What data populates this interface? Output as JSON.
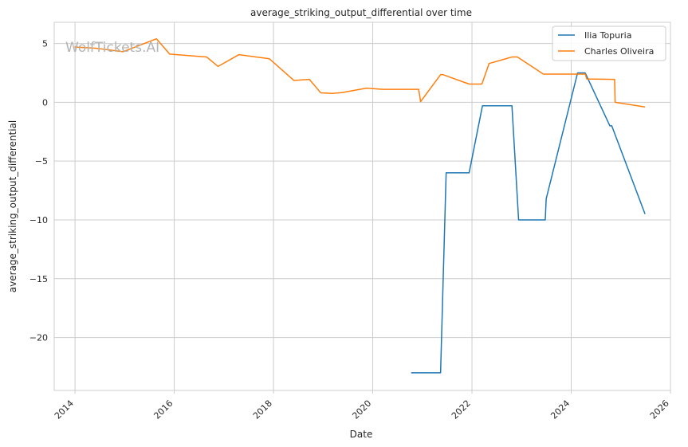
{
  "chart_data": {
    "type": "line",
    "title": "average_striking_output_differential over time",
    "xlabel": "Date",
    "ylabel": "average_striking_output_differential",
    "watermark": "WolfTickets.AI",
    "grid": true,
    "legend_position": "top-right",
    "xlim": [
      "2013-08-01",
      "2026-01-01"
    ],
    "ylim": [
      -24.5,
      6.8
    ],
    "x_ticks": [
      "2014",
      "2016",
      "2018",
      "2020",
      "2022",
      "2024",
      "2026"
    ],
    "y_ticks": [
      5,
      0,
      -5,
      -10,
      -15,
      -20
    ],
    "y_tick_labels": [
      "5",
      "0",
      "−5",
      "−10",
      "−15",
      "−20"
    ],
    "series": [
      {
        "name": "Ilia Topuria",
        "color": "#1f77b4",
        "points": [
          [
            "2020-10-10",
            -23.0
          ],
          [
            "2021-05-15",
            -23.0
          ],
          [
            "2021-06-25",
            -6.0
          ],
          [
            "2021-12-11",
            -6.0
          ],
          [
            "2022-03-19",
            -0.3
          ],
          [
            "2022-10-22",
            -0.3
          ],
          [
            "2022-12-10",
            -10.0
          ],
          [
            "2023-06-24",
            -10.0
          ],
          [
            "2023-07-01",
            -8.2
          ],
          [
            "2024-02-17",
            2.5
          ],
          [
            "2024-04-13",
            2.5
          ],
          [
            "2024-10-12",
            -2.0
          ],
          [
            "2024-10-26",
            -2.0
          ],
          [
            "2025-06-28",
            -9.5
          ]
        ]
      },
      {
        "name": "Charles Oliveira",
        "color": "#ff7f0e",
        "points": [
          [
            "2013-12-28",
            4.7
          ],
          [
            "2014-05-31",
            4.6
          ],
          [
            "2014-12-20",
            4.3
          ],
          [
            "2015-08-23",
            5.4
          ],
          [
            "2015-11-28",
            4.1
          ],
          [
            "2016-08-27",
            3.85
          ],
          [
            "2016-11-19",
            3.05
          ],
          [
            "2017-04-22",
            4.05
          ],
          [
            "2017-12-02",
            3.7
          ],
          [
            "2018-06-01",
            1.85
          ],
          [
            "2018-09-22",
            1.95
          ],
          [
            "2018-12-15",
            0.8
          ],
          [
            "2019-03-09",
            0.75
          ],
          [
            "2019-05-18",
            0.82
          ],
          [
            "2019-11-16",
            1.2
          ],
          [
            "2020-03-14",
            1.1
          ],
          [
            "2020-12-05",
            1.1
          ],
          [
            "2020-12-19",
            0.05
          ],
          [
            "2021-05-15",
            2.35
          ],
          [
            "2021-06-01",
            2.35
          ],
          [
            "2021-12-11",
            1.55
          ],
          [
            "2022-03-15",
            1.55
          ],
          [
            "2022-05-07",
            3.3
          ],
          [
            "2022-10-22",
            3.85
          ],
          [
            "2022-12-01",
            3.85
          ],
          [
            "2023-06-10",
            2.4
          ],
          [
            "2024-04-13",
            2.4
          ],
          [
            "2024-04-25",
            1.98
          ],
          [
            "2024-11-16",
            1.95
          ],
          [
            "2024-11-20",
            0.0
          ],
          [
            "2025-06-28",
            -0.4
          ]
        ]
      }
    ]
  }
}
